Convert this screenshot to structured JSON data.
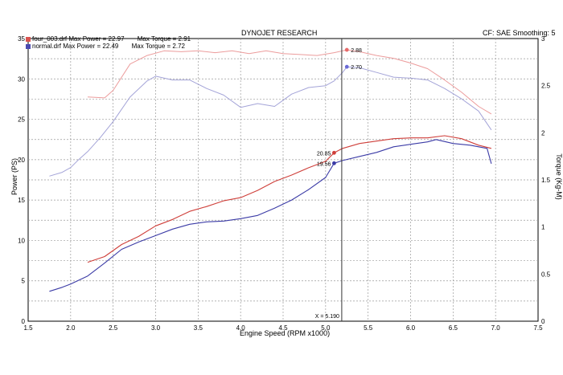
{
  "header": {
    "title": "DYNOJET RESEARCH",
    "settings": "CF: SAE  Smoothing: 5"
  },
  "legend": [
    {
      "label": "four_003.drf Max Power = 22.97",
      "torque_label": "Max Torque = 2.91",
      "color": "#d9534f"
    },
    {
      "label": "normal.drf Max Power = 22.49",
      "torque_label": "Max Torque = 2.72",
      "color": "#4a4ab0"
    }
  ],
  "colors": {
    "power_red": "#cf3f3a",
    "power_blue": "#3b3ba6",
    "torque_red": "#ec9c9c",
    "torque_blue": "#a4a4d8",
    "grid": "#9a9a9a"
  },
  "chart_data": {
    "type": "line",
    "title": "DYNOJET RESEARCH",
    "xlabel": "Engine Speed (RPM x1000)",
    "ylabel": "Power (PS)",
    "y2label": "Torque (Kg-M)",
    "xlim": [
      1.5,
      7.5
    ],
    "ylim": [
      0,
      35
    ],
    "y2lim": [
      0,
      3.0
    ],
    "xticks": [
      "1.5",
      "2.0",
      "2.5",
      "3.0",
      "3.5",
      "4.0",
      "4.5",
      "5.0",
      "5.5",
      "6.0",
      "6.5",
      "7.0",
      "7.5"
    ],
    "yticks": [
      "0",
      "5",
      "10",
      "15",
      "20",
      "25",
      "30",
      "35"
    ],
    "y2ticks": [
      "0",
      "0.5",
      "1",
      "1.5",
      "2",
      "2.5",
      "3"
    ],
    "grid": true,
    "cursor": {
      "x": 5.19,
      "label": "X = 5.190"
    },
    "annotations": [
      {
        "series": "four_003 power",
        "x": 5.1,
        "y": 20.85,
        "label": "20.85"
      },
      {
        "series": "normal power",
        "x": 5.1,
        "y": 19.56,
        "label": "19.56"
      },
      {
        "series": "four_003 torque",
        "x": 5.25,
        "y": 2.88,
        "label": "2.88"
      },
      {
        "series": "normal torque",
        "x": 5.25,
        "y": 2.7,
        "label": "2.70"
      }
    ],
    "series": [
      {
        "name": "four_003.drf",
        "kind": "power",
        "axis": "left",
        "color": "#cf3f3a",
        "x": [
          2.2,
          2.4,
          2.6,
          2.8,
          3.0,
          3.2,
          3.4,
          3.6,
          3.8,
          4.0,
          4.2,
          4.4,
          4.6,
          4.8,
          5.0,
          5.1,
          5.2,
          5.4,
          5.6,
          5.8,
          6.0,
          6.2,
          6.4,
          6.6,
          6.8,
          6.95
        ],
        "y": [
          7.3,
          8.0,
          9.5,
          10.5,
          11.8,
          12.6,
          13.6,
          14.2,
          14.9,
          15.3,
          16.2,
          17.3,
          18.1,
          19.0,
          19.8,
          20.85,
          21.4,
          22.0,
          22.3,
          22.6,
          22.7,
          22.7,
          22.97,
          22.6,
          21.8,
          21.4
        ]
      },
      {
        "name": "normal.drf",
        "kind": "power",
        "axis": "left",
        "color": "#3b3ba6",
        "x": [
          1.75,
          1.9,
          2.0,
          2.2,
          2.4,
          2.6,
          2.8,
          3.0,
          3.2,
          3.4,
          3.6,
          3.8,
          4.0,
          4.2,
          4.4,
          4.6,
          4.8,
          5.0,
          5.1,
          5.2,
          5.4,
          5.6,
          5.8,
          6.0,
          6.2,
          6.3,
          6.5,
          6.7,
          6.9,
          6.95
        ],
        "y": [
          3.7,
          4.2,
          4.6,
          5.6,
          7.2,
          8.9,
          9.8,
          10.6,
          11.4,
          12.0,
          12.3,
          12.4,
          12.7,
          13.1,
          14.0,
          15.0,
          16.3,
          17.8,
          19.56,
          19.9,
          20.4,
          20.9,
          21.6,
          21.9,
          22.2,
          22.49,
          22.0,
          21.8,
          21.4,
          19.5
        ]
      },
      {
        "name": "four_003.drf",
        "kind": "torque",
        "axis": "right",
        "color": "#ec9c9c",
        "x": [
          2.2,
          2.4,
          2.5,
          2.7,
          2.9,
          3.1,
          3.3,
          3.5,
          3.7,
          3.9,
          4.1,
          4.3,
          4.5,
          4.7,
          4.9,
          5.1,
          5.25,
          5.4,
          5.6,
          5.8,
          6.0,
          6.2,
          6.4,
          6.6,
          6.8,
          6.95
        ],
        "y": [
          2.38,
          2.37,
          2.45,
          2.73,
          2.82,
          2.87,
          2.86,
          2.87,
          2.85,
          2.87,
          2.84,
          2.87,
          2.84,
          2.83,
          2.82,
          2.85,
          2.88,
          2.86,
          2.82,
          2.79,
          2.74,
          2.68,
          2.56,
          2.43,
          2.28,
          2.2
        ]
      },
      {
        "name": "normal.drf",
        "kind": "torque",
        "axis": "right",
        "color": "#a4a4d8",
        "x": [
          1.75,
          1.9,
          2.0,
          2.1,
          2.2,
          2.35,
          2.5,
          2.7,
          2.9,
          3.0,
          3.2,
          3.4,
          3.6,
          3.8,
          4.0,
          4.2,
          4.4,
          4.6,
          4.8,
          5.0,
          5.1,
          5.2,
          5.25,
          5.4,
          5.6,
          5.8,
          6.0,
          6.2,
          6.4,
          6.6,
          6.8,
          6.95
        ],
        "y": [
          1.54,
          1.58,
          1.63,
          1.72,
          1.8,
          1.95,
          2.12,
          2.38,
          2.55,
          2.6,
          2.56,
          2.56,
          2.47,
          2.4,
          2.27,
          2.31,
          2.28,
          2.41,
          2.48,
          2.5,
          2.55,
          2.64,
          2.7,
          2.69,
          2.64,
          2.59,
          2.58,
          2.56,
          2.47,
          2.36,
          2.23,
          2.03
        ]
      }
    ]
  }
}
